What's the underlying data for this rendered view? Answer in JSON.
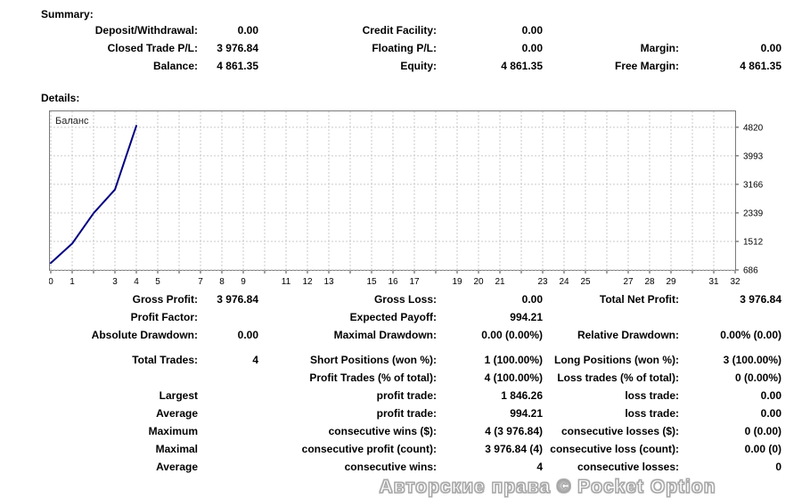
{
  "summary": {
    "heading": "Summary:",
    "rows": [
      {
        "l1": "Deposit/Withdrawal:",
        "v1": "0.00",
        "l2": "Credit Facility:",
        "v2": "0.00",
        "l3": "",
        "v3": ""
      },
      {
        "l1": "Closed Trade P/L:",
        "v1": "3 976.84",
        "l2": "Floating P/L:",
        "v2": "0.00",
        "l3": "Margin:",
        "v3": "0.00"
      },
      {
        "l1": "Balance:",
        "v1": "4 861.35",
        "l2": "Equity:",
        "v2": "4 861.35",
        "l3": "Free Margin:",
        "v3": "4 861.35"
      }
    ]
  },
  "details": {
    "heading": "Details:"
  },
  "chart_data": {
    "type": "line",
    "title": "Баланс",
    "legend_position": "top-left-inside",
    "grid": true,
    "xlim": [
      0,
      32
    ],
    "ylim": [
      660,
      5320
    ],
    "x_tick_labels": [
      0,
      1,
      3,
      4,
      5,
      7,
      8,
      9,
      11,
      12,
      13,
      15,
      16,
      17,
      19,
      20,
      21,
      23,
      24,
      25,
      27,
      28,
      29,
      31,
      32
    ],
    "y_ticks": [
      686,
      1512,
      2339,
      3166,
      3993,
      4820
    ],
    "series": [
      {
        "name": "Баланс",
        "x": [
          0,
          1,
          2,
          3,
          4
        ],
        "values": [
          884.51,
          1450,
          2330,
          3015.09,
          4861.35
        ]
      }
    ]
  },
  "stats": {
    "rows": [
      {
        "gap": false,
        "l1": "Gross Profit:",
        "v1": "3 976.84",
        "l2": "Gross Loss:",
        "v2": "0.00",
        "l3": "Total Net Profit:",
        "v3": "3 976.84"
      },
      {
        "gap": false,
        "l1": "Profit Factor:",
        "v1": "",
        "l2": "Expected Payoff:",
        "v2": "994.21",
        "l3": "",
        "v3": ""
      },
      {
        "gap": false,
        "l1": "Absolute Drawdown:",
        "v1": "0.00",
        "l2": "Maximal Drawdown:",
        "v2": "0.00 (0.00%)",
        "l3": "Relative Drawdown:",
        "v3": "0.00% (0.00)"
      },
      {
        "gap": true,
        "l1": "Total Trades:",
        "v1": "4",
        "l2": "Short Positions (won %):",
        "v2": "1 (100.00%)",
        "l3": "Long Positions (won %):",
        "v3": "3 (100.00%)"
      },
      {
        "gap": false,
        "l1": "",
        "v1": "",
        "l2": "Profit Trades (% of total):",
        "v2": "4 (100.00%)",
        "l3": "Loss trades (% of total):",
        "v3": "0 (0.00%)"
      },
      {
        "gap": false,
        "l1": "Largest",
        "v1": "",
        "l2": "profit trade:",
        "v2": "1 846.26",
        "l3": "loss trade:",
        "v3": "0.00"
      },
      {
        "gap": false,
        "l1": "Average",
        "v1": "",
        "l2": "profit trade:",
        "v2": "994.21",
        "l3": "loss trade:",
        "v3": "0.00"
      },
      {
        "gap": false,
        "l1": "Maximum",
        "v1": "",
        "l2": "consecutive wins ($):",
        "v2": "4 (3 976.84)",
        "l3": "consecutive losses ($):",
        "v3": "0 (0.00)"
      },
      {
        "gap": false,
        "l1": "Maximal",
        "v1": "",
        "l2": "consecutive profit (count):",
        "v2": "3 976.84 (4)",
        "l3": "consecutive loss (count):",
        "v3": "0.00 (0)"
      },
      {
        "gap": false,
        "l1": "Average",
        "v1": "",
        "l2": "consecutive wins:",
        "v2": "4",
        "l3": "consecutive losses:",
        "v3": "0"
      }
    ]
  },
  "footer": {
    "text": "Авторские права © Pocket Option"
  },
  "colors": {
    "line": "#000080",
    "grid": "#c9c9c9",
    "chart_border": "#7a7a7a",
    "tick_text": "#000000",
    "chart_title_text": "#222222",
    "footer_outline": "#a6a6a6"
  }
}
